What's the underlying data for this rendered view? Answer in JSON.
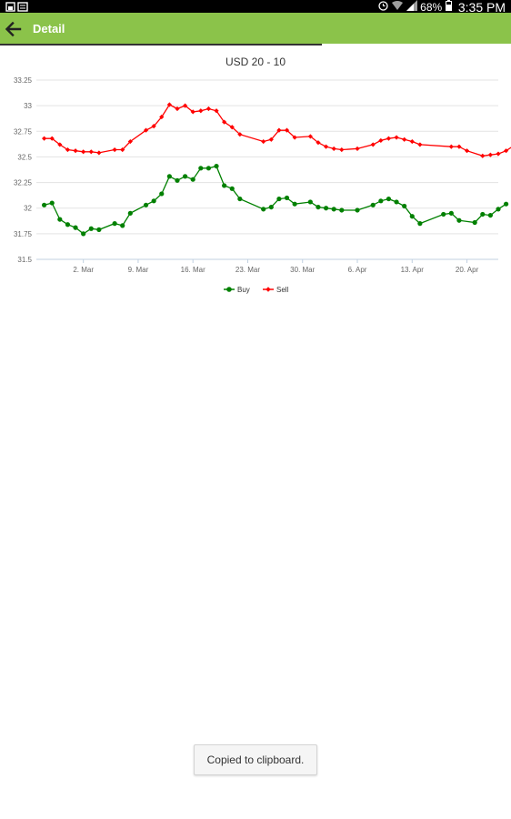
{
  "status_bar": {
    "battery": "68%",
    "time": "3:35 PM"
  },
  "app_bar": {
    "title": "Detail",
    "back_icon": "arrow-left-icon",
    "color": "#8bc34a"
  },
  "loading_progress": 0.63,
  "toast": "Copied to clipboard.",
  "chart_data": {
    "type": "line",
    "title": "USD 20 - 10",
    "xlabel": "",
    "ylabel": "",
    "x_ticks": [
      "2. Mar",
      "9. Mar",
      "16. Mar",
      "23. Mar",
      "30. Mar",
      "6. Apr",
      "13. Apr",
      "20. Apr"
    ],
    "x_range": [
      "2015-02-24",
      "2015-04-24"
    ],
    "y_ticks": [
      "31.5",
      "31.75",
      "32",
      "32.25",
      "32.5",
      "32.75",
      "33",
      "33.25"
    ],
    "ylim": [
      31.5,
      33.25
    ],
    "grid": true,
    "legend_position": "bottom",
    "series": [
      {
        "name": "Buy",
        "color": "#008000",
        "marker": "circle",
        "points": [
          [
            "2015-02-25",
            32.03
          ],
          [
            "2015-02-26",
            32.05
          ],
          [
            "2015-02-27",
            31.89
          ],
          [
            "2015-02-28",
            31.84
          ],
          [
            "2015-03-01",
            31.81
          ],
          [
            "2015-03-02",
            31.75
          ],
          [
            "2015-03-03",
            31.8
          ],
          [
            "2015-03-04",
            31.79
          ],
          [
            "2015-03-06",
            31.85
          ],
          [
            "2015-03-07",
            31.83
          ],
          [
            "2015-03-08",
            31.95
          ],
          [
            "2015-03-10",
            32.03
          ],
          [
            "2015-03-11",
            32.07
          ],
          [
            "2015-03-12",
            32.14
          ],
          [
            "2015-03-13",
            32.31
          ],
          [
            "2015-03-14",
            32.27
          ],
          [
            "2015-03-15",
            32.31
          ],
          [
            "2015-03-16",
            32.28
          ],
          [
            "2015-03-17",
            32.39
          ],
          [
            "2015-03-18",
            32.39
          ],
          [
            "2015-03-19",
            32.41
          ],
          [
            "2015-03-20",
            32.22
          ],
          [
            "2015-03-21",
            32.19
          ],
          [
            "2015-03-22",
            32.09
          ],
          [
            "2015-03-25",
            31.99
          ],
          [
            "2015-03-26",
            32.01
          ],
          [
            "2015-03-27",
            32.09
          ],
          [
            "2015-03-28",
            32.1
          ],
          [
            "2015-03-29",
            32.04
          ],
          [
            "2015-03-31",
            32.06
          ],
          [
            "2015-04-01",
            32.01
          ],
          [
            "2015-04-02",
            32.0
          ],
          [
            "2015-04-03",
            31.99
          ],
          [
            "2015-04-04",
            31.98
          ],
          [
            "2015-04-06",
            31.98
          ],
          [
            "2015-04-08",
            32.03
          ],
          [
            "2015-04-09",
            32.07
          ],
          [
            "2015-04-10",
            32.09
          ],
          [
            "2015-04-11",
            32.06
          ],
          [
            "2015-04-12",
            32.02
          ],
          [
            "2015-04-13",
            31.92
          ],
          [
            "2015-04-14",
            31.85
          ],
          [
            "2015-04-17",
            31.94
          ],
          [
            "2015-04-18",
            31.95
          ],
          [
            "2015-04-19",
            31.88
          ],
          [
            "2015-04-21",
            31.86
          ],
          [
            "2015-04-22",
            31.94
          ],
          [
            "2015-04-23",
            31.93
          ],
          [
            "2015-04-24",
            31.99
          ],
          [
            "2015-04-25",
            32.04
          ]
        ]
      },
      {
        "name": "Sell",
        "color": "#ff0000",
        "marker": "diamond",
        "points": [
          [
            "2015-02-25",
            32.68
          ],
          [
            "2015-02-26",
            32.68
          ],
          [
            "2015-02-27",
            32.62
          ],
          [
            "2015-02-28",
            32.57
          ],
          [
            "2015-03-01",
            32.56
          ],
          [
            "2015-03-02",
            32.55
          ],
          [
            "2015-03-03",
            32.55
          ],
          [
            "2015-03-04",
            32.54
          ],
          [
            "2015-03-06",
            32.57
          ],
          [
            "2015-03-07",
            32.57
          ],
          [
            "2015-03-08",
            32.65
          ],
          [
            "2015-03-10",
            32.76
          ],
          [
            "2015-03-11",
            32.8
          ],
          [
            "2015-03-12",
            32.89
          ],
          [
            "2015-03-13",
            33.01
          ],
          [
            "2015-03-14",
            32.97
          ],
          [
            "2015-03-15",
            33.0
          ],
          [
            "2015-03-16",
            32.94
          ],
          [
            "2015-03-17",
            32.95
          ],
          [
            "2015-03-18",
            32.97
          ],
          [
            "2015-03-19",
            32.95
          ],
          [
            "2015-03-20",
            32.84
          ],
          [
            "2015-03-21",
            32.79
          ],
          [
            "2015-03-22",
            32.72
          ],
          [
            "2015-03-25",
            32.65
          ],
          [
            "2015-03-26",
            32.67
          ],
          [
            "2015-03-27",
            32.76
          ],
          [
            "2015-03-28",
            32.76
          ],
          [
            "2015-03-29",
            32.69
          ],
          [
            "2015-03-31",
            32.7
          ],
          [
            "2015-04-01",
            32.64
          ],
          [
            "2015-04-02",
            32.6
          ],
          [
            "2015-04-03",
            32.58
          ],
          [
            "2015-04-04",
            32.57
          ],
          [
            "2015-04-06",
            32.58
          ],
          [
            "2015-04-08",
            32.62
          ],
          [
            "2015-04-09",
            32.66
          ],
          [
            "2015-04-10",
            32.68
          ],
          [
            "2015-04-11",
            32.69
          ],
          [
            "2015-04-12",
            32.67
          ],
          [
            "2015-04-13",
            32.65
          ],
          [
            "2015-04-14",
            32.62
          ],
          [
            "2015-04-18",
            32.6
          ],
          [
            "2015-04-19",
            32.6
          ],
          [
            "2015-04-20",
            32.56
          ],
          [
            "2015-04-22",
            32.51
          ],
          [
            "2015-04-23",
            32.52
          ],
          [
            "2015-04-24",
            32.53
          ],
          [
            "2015-04-25",
            32.56
          ],
          [
            "2015-04-26",
            32.61
          ]
        ]
      }
    ]
  }
}
